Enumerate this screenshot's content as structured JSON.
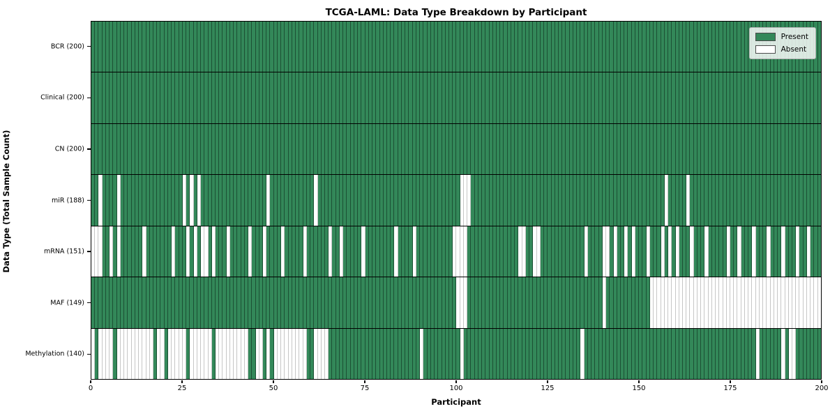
{
  "title": "TCGA-LAML: Data Type Breakdown by Participant",
  "x_axis": {
    "label": "Participant",
    "ticks": [
      0,
      25,
      50,
      75,
      100,
      125,
      150,
      175,
      200
    ]
  },
  "y_axis": {
    "label": "Data Type (Total Sample Count)"
  },
  "legend": {
    "items": [
      {
        "label": "Present",
        "color": "#338859"
      },
      {
        "label": "Absent",
        "color": "#ffffff"
      }
    ]
  },
  "chart_data": {
    "type": "heatmap",
    "x_range": [
      0,
      200
    ],
    "n_participants": 200,
    "colors": {
      "present": "#338859",
      "absent": "#ffffff"
    },
    "rows": [
      {
        "name": "BCR",
        "label": "BCR (200)",
        "present_count": 200,
        "absent": []
      },
      {
        "name": "Clinical",
        "label": "Clinical (200)",
        "present_count": 200,
        "absent": []
      },
      {
        "name": "CN",
        "label": "CN (200)",
        "present_count": 200,
        "absent": []
      },
      {
        "name": "miR",
        "label": "miR (188)",
        "present_count": 188,
        "absent": [
          2,
          7,
          25,
          27,
          29,
          48,
          61,
          101,
          102,
          103,
          157,
          163
        ]
      },
      {
        "name": "mRNA",
        "label": "mRNA (151)",
        "present_count": 151,
        "absent": [
          0,
          1,
          2,
          5,
          7,
          14,
          22,
          26,
          28,
          30,
          31,
          33,
          37,
          43,
          47,
          52,
          58,
          65,
          68,
          74,
          83,
          88,
          99,
          100,
          101,
          102,
          117,
          118,
          121,
          122,
          135,
          140,
          141,
          143,
          146,
          148,
          152,
          156,
          158,
          160,
          164,
          168,
          174,
          177,
          181,
          185,
          189,
          193,
          196
        ]
      },
      {
        "name": "MAF",
        "label": "MAF (149)",
        "present_count": 149,
        "absent": [
          100,
          101,
          102,
          140,
          153,
          154,
          155,
          156,
          157,
          158,
          159,
          160,
          161,
          162,
          163,
          164,
          165,
          166,
          167,
          168,
          169,
          170,
          171,
          172,
          173,
          174,
          175,
          176,
          177,
          178,
          179,
          180,
          181,
          182,
          183,
          184,
          185,
          186,
          187,
          188,
          189,
          190,
          191,
          192,
          193,
          194,
          195,
          196,
          197,
          198,
          199
        ]
      },
      {
        "name": "Methylation",
        "label": "Methylation (140)",
        "present_count": 140,
        "absent": [
          0,
          2,
          3,
          4,
          5,
          7,
          8,
          9,
          10,
          11,
          12,
          13,
          14,
          15,
          16,
          18,
          19,
          21,
          22,
          23,
          24,
          25,
          27,
          28,
          29,
          30,
          31,
          32,
          34,
          35,
          36,
          37,
          38,
          39,
          40,
          41,
          42,
          45,
          46,
          48,
          50,
          51,
          52,
          53,
          54,
          55,
          56,
          57,
          58,
          61,
          62,
          63,
          64,
          90,
          101,
          134,
          182,
          189,
          191,
          192
        ]
      }
    ]
  }
}
